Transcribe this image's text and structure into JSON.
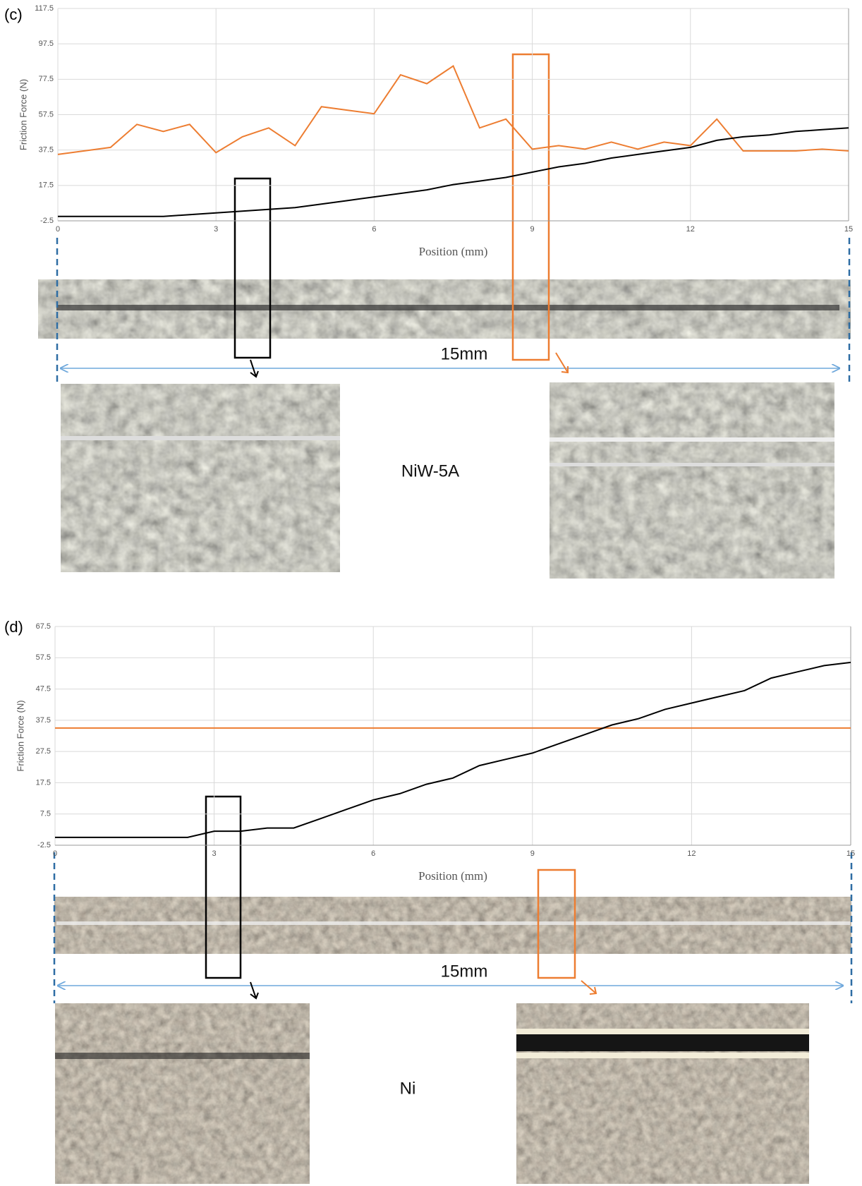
{
  "panels": [
    {
      "label": "(c)",
      "sample": "NiW-5A",
      "length": "15mm"
    },
    {
      "label": "(d)",
      "sample": "Ni",
      "length": "15mm"
    }
  ],
  "chart_data": [
    {
      "type": "line",
      "y_label": "Friction Force (N)",
      "x_label": "Position (mm)",
      "xlim": [
        0,
        15
      ],
      "xticks": [
        0,
        3,
        6,
        9,
        12,
        15
      ],
      "ylim": [
        -2.5,
        117.5
      ],
      "yticks": [
        -2.5,
        17.5,
        37.5,
        57.5,
        77.5,
        97.5,
        117.5
      ],
      "grid": true,
      "x": [
        0,
        0.5,
        1,
        1.5,
        2,
        2.5,
        3,
        3.5,
        4,
        4.5,
        5,
        5.5,
        6,
        6.5,
        7,
        7.5,
        8,
        8.5,
        9,
        9.5,
        10,
        10.5,
        11,
        11.5,
        12,
        12.5,
        13,
        13.5,
        14,
        14.5,
        15
      ],
      "series": [
        {
          "color": "#ed7d31",
          "values": [
            35,
            37,
            39,
            52,
            48,
            52,
            36,
            45,
            50,
            40,
            62,
            60,
            58,
            80,
            75,
            85,
            50,
            55,
            38,
            40,
            38,
            42,
            38,
            42,
            40,
            55,
            37,
            37,
            37,
            38,
            37
          ]
        },
        {
          "color": "#000000",
          "values": [
            0,
            0,
            0,
            0,
            0,
            1,
            2,
            3,
            4,
            5,
            7,
            9,
            11,
            13,
            15,
            18,
            20,
            22,
            25,
            28,
            30,
            33,
            35,
            37,
            39,
            43,
            45,
            46,
            48,
            49,
            50
          ]
        }
      ]
    },
    {
      "type": "line",
      "y_label": "Friction Force (N)",
      "x_label": "Position (mm)",
      "xlim": [
        0,
        15
      ],
      "xticks": [
        0,
        3,
        6,
        9,
        12,
        15
      ],
      "ylim": [
        -2.5,
        67.5
      ],
      "yticks": [
        -2.5,
        7.5,
        17.5,
        27.5,
        37.5,
        47.5,
        57.5,
        67.5
      ],
      "grid": true,
      "x": [
        0,
        0.5,
        1,
        1.5,
        2,
        2.5,
        3,
        3.5,
        4,
        4.5,
        5,
        5.5,
        6,
        6.5,
        7,
        7.5,
        8,
        8.5,
        9,
        9.5,
        10,
        10.5,
        11,
        11.5,
        12,
        12.5,
        13,
        13.5,
        14,
        14.5,
        15
      ],
      "series": [
        {
          "color": "#ed7d31",
          "values": [
            35,
            35,
            35,
            35,
            35,
            35,
            35,
            35,
            35,
            35,
            35,
            35,
            35,
            35,
            35,
            35,
            35,
            35,
            35,
            35,
            35,
            35,
            35,
            35,
            35,
            35,
            35,
            35,
            35,
            35,
            35
          ]
        },
        {
          "color": "#000000",
          "values": [
            0,
            0,
            0,
            0,
            0,
            0,
            2,
            2,
            3,
            3,
            6,
            9,
            12,
            14,
            17,
            19,
            23,
            25,
            27,
            30,
            33,
            36,
            38,
            41,
            43,
            45,
            47,
            51,
            53,
            55,
            56
          ]
        }
      ]
    }
  ]
}
